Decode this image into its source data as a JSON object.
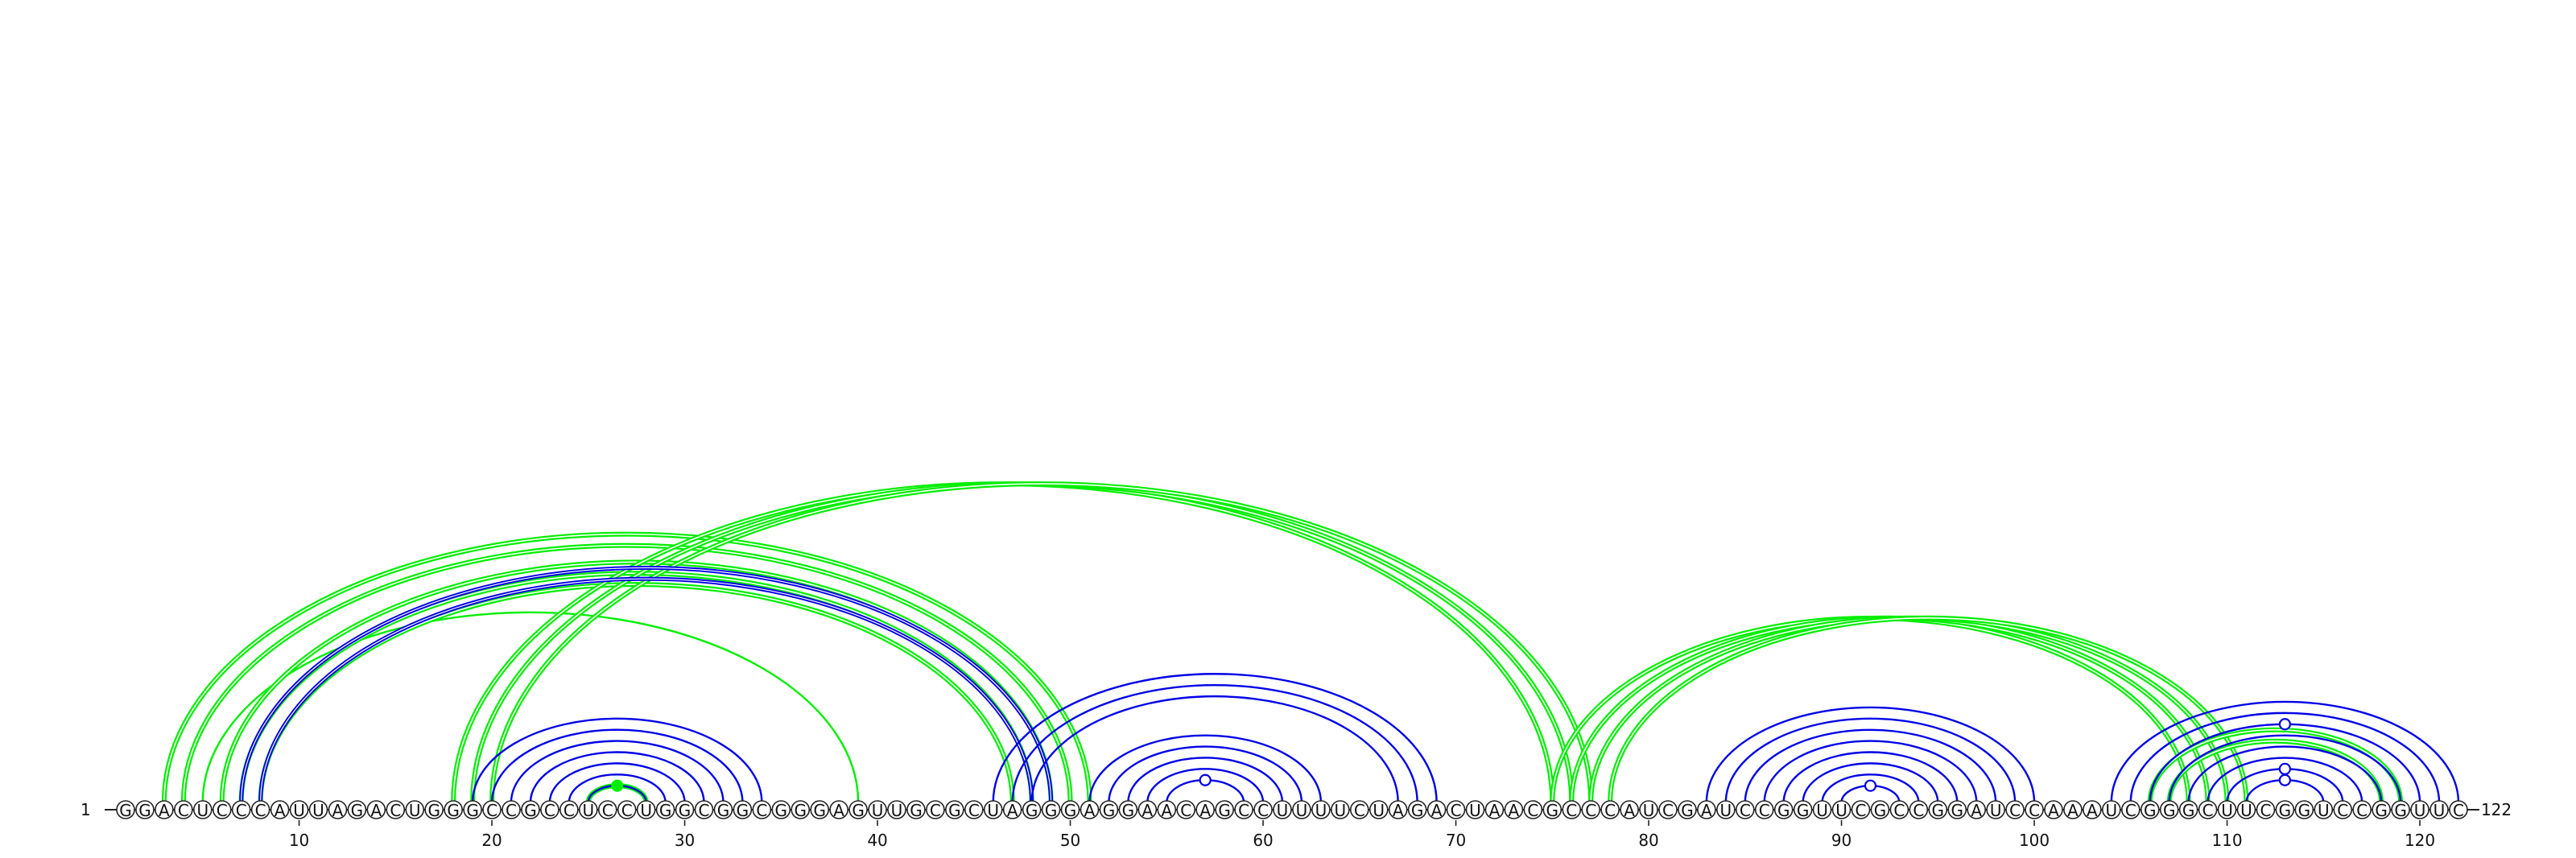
{
  "sequence": "GGACUCCCAUUAGACUGGGCCGCCUCCUGGCGGCGGGAGUUGCGCUAGGGAGGAACAGCCUUUUCUAGACUAACGCCCAUCGAUCCGGUUCGCCGGAUCCAAAUCGGGCUUCGGUCCGGUUC",
  "start_label": "1",
  "end_label": "122",
  "tick_labels": [
    "10",
    "20",
    "30",
    "40",
    "50",
    "60",
    "70",
    "80",
    "90",
    "100",
    "110",
    "120"
  ],
  "colors": {
    "reference": "#0000e6",
    "predicted": "#00ee00",
    "backbone": "#222222"
  },
  "chart_data": {
    "type": "arc",
    "length": 122,
    "ticks": [
      10,
      20,
      30,
      40,
      50,
      60,
      70,
      80,
      90,
      100,
      110,
      120
    ],
    "blue_pairs": [
      [
        7,
        49
      ],
      [
        8,
        48
      ],
      [
        19,
        34
      ],
      [
        20,
        33
      ],
      [
        21,
        32
      ],
      [
        22,
        31
      ],
      [
        23,
        30
      ],
      [
        24,
        29
      ],
      [
        25,
        28
      ],
      [
        46,
        69
      ],
      [
        47,
        68
      ],
      [
        48,
        67
      ],
      [
        51,
        63
      ],
      [
        52,
        62
      ],
      [
        53,
        61
      ],
      [
        54,
        60
      ],
      [
        55,
        59
      ],
      [
        83,
        100
      ],
      [
        84,
        99
      ],
      [
        85,
        98
      ],
      [
        86,
        97
      ],
      [
        87,
        96
      ],
      [
        88,
        95
      ],
      [
        89,
        94
      ],
      [
        90,
        93
      ],
      [
        104,
        122
      ],
      [
        105,
        121
      ],
      [
        106,
        120
      ],
      [
        107,
        119
      ],
      [
        108,
        118
      ],
      [
        109,
        117
      ],
      [
        110,
        116
      ],
      [
        111,
        115
      ]
    ],
    "green_pairs": [
      [
        3,
        51
      ],
      [
        4,
        50
      ],
      [
        5,
        39
      ],
      [
        6,
        49
      ],
      [
        7,
        48
      ],
      [
        8,
        47
      ],
      [
        18,
        75
      ],
      [
        19,
        76
      ],
      [
        20,
        77
      ],
      [
        75,
        108
      ],
      [
        76,
        109
      ],
      [
        77,
        110
      ],
      [
        78,
        111
      ],
      [
        25,
        28
      ],
      [
        106,
        119
      ],
      [
        107,
        118
      ]
    ]
  }
}
